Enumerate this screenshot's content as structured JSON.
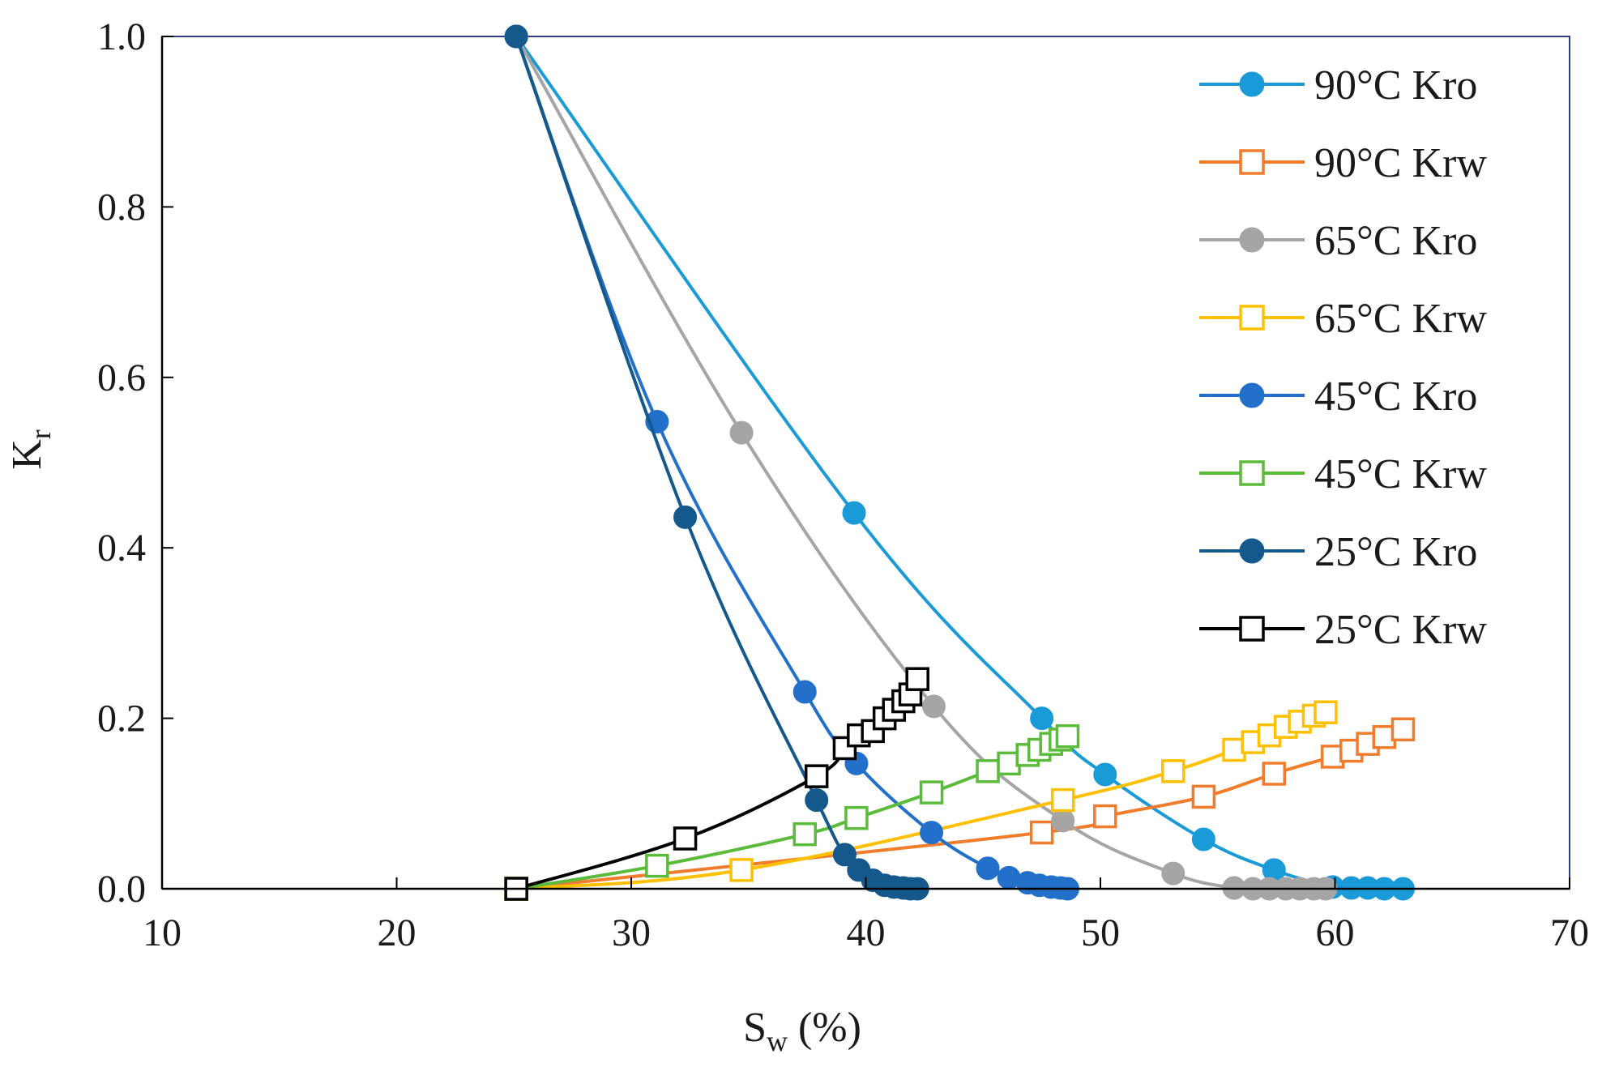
{
  "chart_data": {
    "type": "line",
    "title": "",
    "xlabel": "S",
    "xlabel_sub": "w",
    "xlabel_suffix": " (%)",
    "ylabel": "K",
    "ylabel_sub": "r",
    "xlim": [
      10,
      70
    ],
    "ylim": [
      0.0,
      1.0
    ],
    "xticks": [
      10,
      20,
      30,
      40,
      50,
      60,
      70
    ],
    "yticks": [
      0.0,
      0.2,
      0.4,
      0.6,
      0.8,
      1.0
    ],
    "ytick_labels": [
      "0.0",
      "0.2",
      "0.4",
      "0.6",
      "0.8",
      "1.0"
    ],
    "grid": false,
    "legend_position": "top-right",
    "series": [
      {
        "name": "90°C Kro",
        "color": "#1a9ad6",
        "marker": "circle",
        "x": [
          25.1,
          39.5,
          47.5,
          50.2,
          54.4,
          57.4,
          59.9,
          60.7,
          61.4,
          62.1,
          62.9
        ],
        "y": [
          1.0,
          0.441,
          0.2,
          0.134,
          0.058,
          0.022,
          0.002,
          0.001,
          0.001,
          0.0,
          0.0
        ]
      },
      {
        "name": "90°C Krw",
        "color": "#f07c2c",
        "marker": "square",
        "x": [
          25.1,
          47.5,
          50.2,
          54.4,
          57.4,
          59.9,
          60.7,
          61.4,
          62.1,
          62.9
        ],
        "y": [
          0.0,
          0.066,
          0.085,
          0.108,
          0.135,
          0.155,
          0.162,
          0.17,
          0.178,
          0.187
        ]
      },
      {
        "name": "65°C Kro",
        "color": "#a5a5a5",
        "marker": "circle",
        "x": [
          25.1,
          34.7,
          42.9,
          48.4,
          53.1,
          55.7,
          56.5,
          57.2,
          57.9,
          58.5,
          59.1,
          59.6
        ],
        "y": [
          1.0,
          0.535,
          0.214,
          0.08,
          0.018,
          0.001,
          0.0,
          0.0,
          0.0,
          0.0,
          0.0,
          0.0
        ]
      },
      {
        "name": "65°C Krw",
        "color": "#ffc000",
        "marker": "square",
        "x": [
          25.1,
          34.7,
          48.4,
          53.1,
          55.7,
          56.5,
          57.2,
          57.9,
          58.5,
          59.1,
          59.6
        ],
        "y": [
          0.0,
          0.022,
          0.104,
          0.138,
          0.163,
          0.172,
          0.18,
          0.19,
          0.196,
          0.203,
          0.207
        ]
      },
      {
        "name": "45°C Kro",
        "color": "#2270c9",
        "marker": "circle",
        "x": [
          25.1,
          31.1,
          37.4,
          39.6,
          42.8,
          45.2,
          46.1,
          46.9,
          47.4,
          47.9,
          48.3,
          48.6
        ],
        "y": [
          1.0,
          0.548,
          0.231,
          0.147,
          0.066,
          0.024,
          0.013,
          0.007,
          0.004,
          0.002,
          0.001,
          0.0
        ]
      },
      {
        "name": "45°C Krw",
        "color": "#5bbb3b",
        "marker": "square",
        "x": [
          25.1,
          31.1,
          37.4,
          39.6,
          42.8,
          45.2,
          46.1,
          46.9,
          47.4,
          47.9,
          48.3,
          48.6
        ],
        "y": [
          0.0,
          0.027,
          0.064,
          0.083,
          0.113,
          0.138,
          0.147,
          0.157,
          0.163,
          0.17,
          0.175,
          0.179
        ]
      },
      {
        "name": "25°C Kro",
        "color": "#14588c",
        "marker": "circle",
        "x": [
          25.1,
          32.3,
          37.9,
          39.1,
          39.7,
          40.3,
          40.8,
          41.2,
          41.6,
          41.9,
          42.2
        ],
        "y": [
          1.0,
          0.436,
          0.104,
          0.04,
          0.022,
          0.01,
          0.004,
          0.002,
          0.001,
          0.0,
          0.0
        ]
      },
      {
        "name": "25°C Krw",
        "color": "#000000",
        "marker": "square",
        "x": [
          25.1,
          32.3,
          37.9,
          39.1,
          39.7,
          40.3,
          40.8,
          41.2,
          41.6,
          41.9,
          42.2
        ],
        "y": [
          0.0,
          0.059,
          0.132,
          0.165,
          0.18,
          0.185,
          0.2,
          0.21,
          0.22,
          0.228,
          0.246
        ]
      }
    ]
  }
}
